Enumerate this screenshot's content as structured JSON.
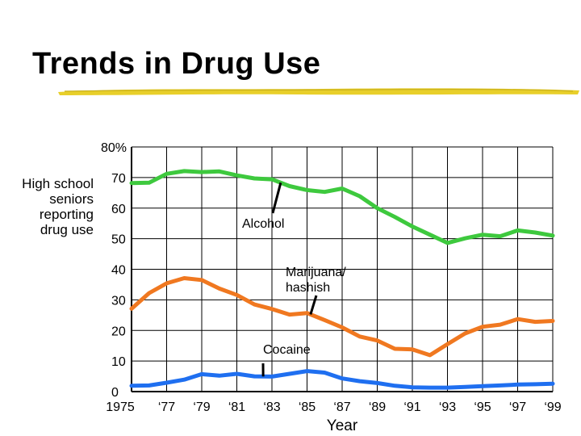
{
  "slide": {
    "title": "Trends in Drug Use",
    "y_axis_label": "High school\nseniors\nreporting\ndrug use"
  },
  "chart_data": {
    "type": "line",
    "title": "Trends in Drug Use",
    "xlabel": "Year",
    "ylabel": "High school seniors reporting drug use",
    "xlim": [
      1975,
      1999
    ],
    "ylim": [
      0,
      80
    ],
    "y_ticks": [
      {
        "value": 80,
        "label": "80%"
      },
      {
        "value": 70,
        "label": "70"
      },
      {
        "value": 60,
        "label": "60"
      },
      {
        "value": 50,
        "label": "50"
      },
      {
        "value": 40,
        "label": "40"
      },
      {
        "value": 30,
        "label": "30"
      },
      {
        "value": 20,
        "label": "20"
      },
      {
        "value": 10,
        "label": "10"
      },
      {
        "value": 0,
        "label": "0"
      }
    ],
    "x_ticks": [
      {
        "value": 1975,
        "label": "1975"
      },
      {
        "value": 1977,
        "label": "‘77"
      },
      {
        "value": 1979,
        "label": "‘79"
      },
      {
        "value": 1981,
        "label": "‘81"
      },
      {
        "value": 1983,
        "label": "‘83"
      },
      {
        "value": 1985,
        "label": "‘85"
      },
      {
        "value": 1987,
        "label": "‘87"
      },
      {
        "value": 1989,
        "label": "‘89"
      },
      {
        "value": 1991,
        "label": "‘91"
      },
      {
        "value": 1993,
        "label": "‘93"
      },
      {
        "value": 1995,
        "label": "‘95"
      },
      {
        "value": 1997,
        "label": "‘97"
      },
      {
        "value": 1999,
        "label": "‘99"
      }
    ],
    "grid": true,
    "x": [
      1975,
      1976,
      1977,
      1978,
      1979,
      1980,
      1981,
      1982,
      1983,
      1984,
      1985,
      1986,
      1987,
      1988,
      1989,
      1990,
      1991,
      1992,
      1993,
      1994,
      1995,
      1996,
      1997,
      1998,
      1999
    ],
    "series": [
      {
        "name": "Alcohol",
        "color": "#3ec93e",
        "values": [
          68.2,
          68.3,
          71.2,
          72.1,
          71.8,
          72.0,
          70.7,
          69.7,
          69.4,
          67.2,
          65.9,
          65.3,
          66.4,
          63.9,
          60.0,
          57.1,
          54.0,
          51.3,
          48.6,
          50.1,
          51.3,
          50.8,
          52.7,
          52.0,
          51.0
        ]
      },
      {
        "name": "Marijuana/ hashish",
        "color": "#f07820",
        "values": [
          27.1,
          32.2,
          35.4,
          37.1,
          36.5,
          33.7,
          31.6,
          28.5,
          27.0,
          25.2,
          25.7,
          23.4,
          21.0,
          18.0,
          16.7,
          14.0,
          13.8,
          11.9,
          15.5,
          19.0,
          21.2,
          21.9,
          23.7,
          22.8,
          23.1
        ]
      },
      {
        "name": "Cocaine",
        "color": "#1f6ff0",
        "values": [
          1.9,
          2.0,
          2.9,
          3.9,
          5.7,
          5.2,
          5.8,
          5.0,
          4.9,
          5.8,
          6.7,
          6.2,
          4.3,
          3.4,
          2.8,
          1.9,
          1.4,
          1.3,
          1.3,
          1.5,
          1.8,
          2.0,
          2.3,
          2.4,
          2.6
        ]
      }
    ]
  }
}
